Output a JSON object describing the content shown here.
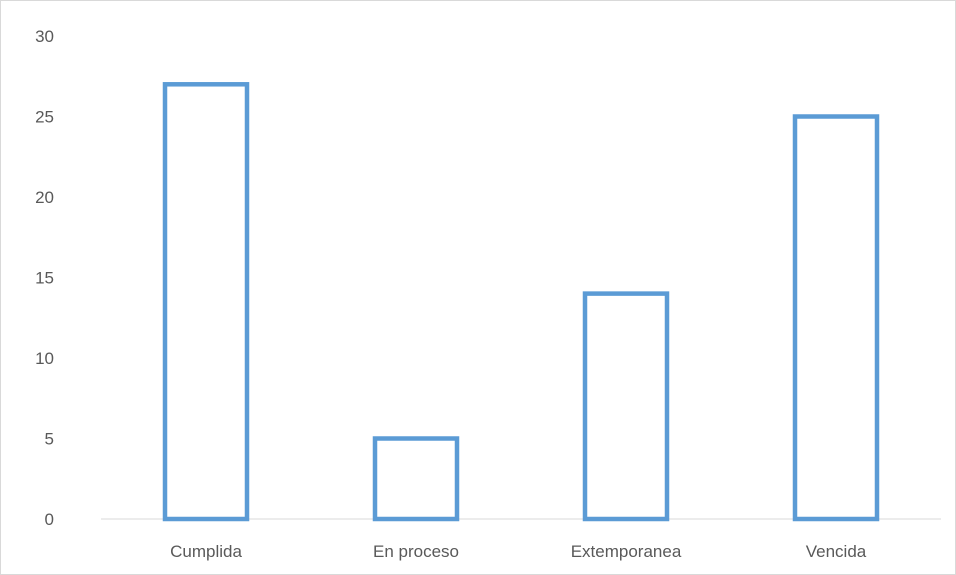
{
  "chart_data": {
    "type": "bar",
    "categories": [
      "Cumplida",
      "En proceso",
      "Extemporanea",
      "Vencida"
    ],
    "values": [
      27,
      5,
      14,
      25
    ],
    "title": "",
    "xlabel": "",
    "ylabel": "",
    "ylim": [
      0,
      30
    ],
    "yticks": [
      0,
      5,
      10,
      15,
      20,
      25,
      30
    ],
    "grid": false,
    "legend": "none",
    "bar_style": "outline",
    "bar_color": "#5b9bd5"
  }
}
